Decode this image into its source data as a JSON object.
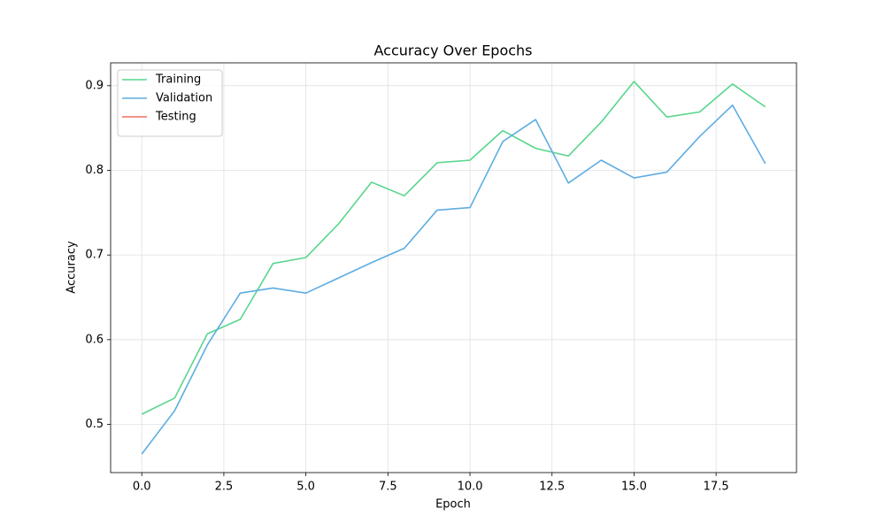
{
  "chart_data": {
    "type": "line",
    "title": "Accuracy Over Epochs",
    "xlabel": "Epoch",
    "ylabel": "Accuracy",
    "x": [
      0,
      1,
      2,
      3,
      4,
      5,
      6,
      7,
      8,
      9,
      10,
      11,
      12,
      13,
      14,
      15,
      16,
      17,
      18,
      19
    ],
    "series": [
      {
        "name": "Training",
        "color": "#58d68d",
        "values": [
          0.512,
          0.531,
          0.607,
          0.624,
          0.69,
          0.697,
          0.737,
          0.786,
          0.77,
          0.809,
          0.812,
          0.847,
          0.826,
          0.817,
          0.857,
          0.905,
          0.863,
          0.869,
          0.902,
          0.875
        ]
      },
      {
        "name": "Validation",
        "color": "#5dade2",
        "values": [
          0.465,
          0.516,
          0.594,
          0.655,
          0.661,
          0.655,
          0.673,
          0.691,
          0.708,
          0.753,
          0.756,
          0.834,
          0.86,
          0.785,
          0.812,
          0.791,
          0.798,
          0.84,
          0.877,
          0.808
        ]
      },
      {
        "name": "Testing",
        "color": "#ec7063",
        "values": [
          null,
          null,
          null,
          null,
          null,
          null,
          null,
          null,
          null,
          null,
          null,
          null,
          null,
          null,
          null,
          null,
          null,
          null,
          null,
          null
        ]
      }
    ],
    "xlim": [
      -0.95,
      19.95
    ],
    "xticks": [
      {
        "value": 0,
        "label": "0.0"
      },
      2.5,
      {
        "value": 5,
        "label": "5.0"
      },
      7.5,
      {
        "value": 10,
        "label": "10.0"
      },
      12.5,
      {
        "value": 15,
        "label": "15.0"
      },
      17.5
    ],
    "ylim": [
      0.443,
      0.927
    ],
    "yticks": [
      0.5,
      0.6,
      0.7,
      0.8,
      0.9
    ],
    "grid": true,
    "legend": "upper left"
  }
}
